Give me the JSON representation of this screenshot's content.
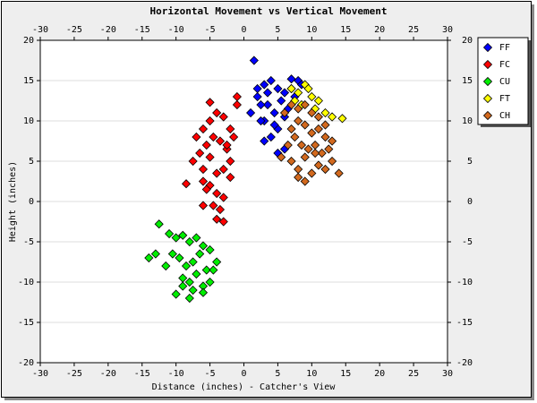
{
  "chart_data": {
    "type": "scatter",
    "title": "Horizontal Movement vs Vertical Movement",
    "x_label": "Distance (inches) - Catcher's View",
    "y_label": "Height (inches)",
    "xlim": [
      -30,
      30
    ],
    "ylim": [
      -20,
      20
    ],
    "xticks": [
      -30,
      -25,
      -20,
      -15,
      -10,
      -5,
      0,
      5,
      10,
      15,
      20,
      25,
      30
    ],
    "yticks": [
      -20,
      -15,
      -10,
      -5,
      0,
      5,
      10,
      15,
      20
    ],
    "grid": "y",
    "legend": "right",
    "series": [
      {
        "name": "FF",
        "color": "#0000ff",
        "x": [
          1.5,
          2,
          3,
          4,
          5,
          6,
          7,
          8,
          3.5,
          4.5,
          5.5,
          2.5,
          6.5,
          7.5,
          1,
          3,
          5,
          6,
          4,
          2,
          8.5,
          5,
          3,
          6,
          4.5,
          7,
          2.5,
          3.5
        ],
        "y": [
          17.5,
          14,
          14.5,
          15,
          14,
          13.5,
          14,
          15,
          12,
          11,
          12.5,
          12,
          11.5,
          13,
          11,
          10,
          9,
          10.5,
          8,
          13,
          14.5,
          6,
          7.5,
          6.5,
          9.5,
          15.2,
          10,
          13.5
        ]
      },
      {
        "name": "FC",
        "color": "#ff0000",
        "x": [
          -7,
          -6,
          -5,
          -4,
          -3,
          -2,
          -1,
          -6.5,
          -5.5,
          -4.5,
          -3.5,
          -2.5,
          -1.5,
          -7.5,
          -6,
          -5,
          -4,
          -3,
          -2,
          -5,
          -4,
          -3,
          -6,
          -2,
          -4.5,
          -3.5,
          -5.5,
          -1,
          -8.5,
          -5,
          -3,
          -4,
          -2.5,
          -6
        ],
        "y": [
          8,
          9,
          10,
          11,
          10.5,
          9,
          12,
          6,
          7,
          8,
          7.5,
          6.5,
          8,
          5,
          4,
          5.5,
          3.5,
          4,
          5,
          2,
          1,
          0.5,
          2.5,
          3,
          -0.5,
          -1,
          1.5,
          13,
          2.2,
          12.3,
          -2.5,
          -2.2,
          7,
          -0.5
        ]
      },
      {
        "name": "CU",
        "color": "#00ee00",
        "x": [
          -12.5,
          -11,
          -10,
          -9,
          -8,
          -7,
          -6,
          -5,
          -4,
          -10.5,
          -9.5,
          -8.5,
          -7.5,
          -6.5,
          -5.5,
          -11.5,
          -13,
          -14,
          -9,
          -8,
          -7,
          -6,
          -10,
          -8,
          -7.5,
          -6,
          -4.5,
          -9,
          -5
        ],
        "y": [
          -2.8,
          -4,
          -4.5,
          -4.2,
          -5,
          -4.5,
          -5.5,
          -6,
          -7.5,
          -6.5,
          -7,
          -8,
          -7.5,
          -6.5,
          -8.5,
          -8,
          -6.5,
          -7,
          -9.5,
          -10,
          -9,
          -10.5,
          -11.5,
          -12,
          -11,
          -11.3,
          -8.5,
          -10.5,
          -10
        ]
      },
      {
        "name": "FT",
        "color": "#ffff00",
        "x": [
          7,
          8,
          9,
          10,
          11,
          12,
          8.5,
          9.5,
          14.5,
          13,
          7.5,
          10.5
        ],
        "y": [
          14,
          13.5,
          14.5,
          13,
          12.5,
          11,
          12,
          14,
          10.3,
          10.5,
          12.5,
          11.5
        ]
      },
      {
        "name": "CH",
        "color": "#d2691e",
        "x": [
          6,
          7,
          8,
          9,
          10,
          11,
          12,
          7,
          8,
          9,
          10,
          11,
          12,
          13,
          6.5,
          7.5,
          8.5,
          9.5,
          10.5,
          11.5,
          12.5,
          7,
          9,
          11,
          13,
          8,
          10,
          12,
          9,
          5.5,
          8,
          10.5,
          14
        ],
        "y": [
          11,
          12,
          11.5,
          12,
          11,
          10.5,
          9.5,
          9,
          10,
          9.5,
          8.5,
          9,
          8,
          7.5,
          7,
          8,
          7,
          6.5,
          7,
          6,
          6.5,
          5,
          5.5,
          4.5,
          5,
          4,
          3.5,
          4,
          2.5,
          5.5,
          3,
          6,
          3.5
        ]
      }
    ]
  }
}
